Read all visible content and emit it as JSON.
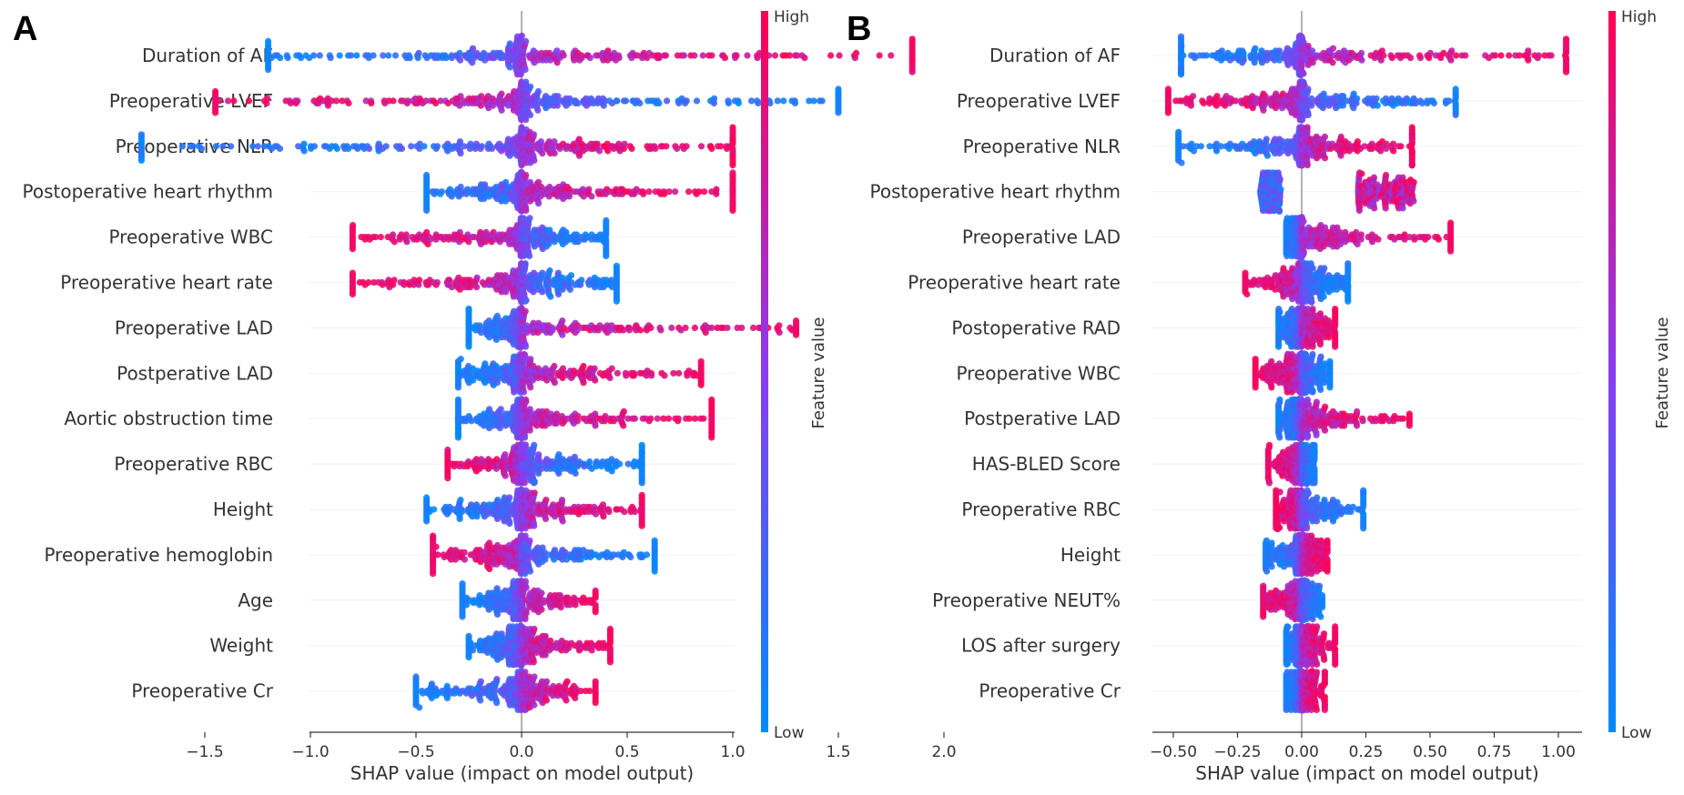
{
  "chart_data": [
    {
      "type": "scatter",
      "subtype": "shap-beeswarm",
      "panel_label": "A",
      "xlabel": "SHAP value (impact on model output)",
      "xlim": [
        -1.97,
        2.0
      ],
      "xticks": [
        -1.5,
        -1.0,
        -0.5,
        0.0,
        0.5,
        1.0,
        1.5,
        2.0
      ],
      "xtick_labels": [
        "−1.5",
        "−1.0",
        "−0.5",
        "0.0",
        "0.5",
        "1.0",
        "1.5",
        "2.0"
      ],
      "colorbar": {
        "label": "Feature value",
        "high": "High",
        "low": "Low"
      },
      "features": [
        {
          "name": "Duration of AF",
          "min": -1.2,
          "max": 1.85,
          "high_effect": "positive"
        },
        {
          "name": "Preoperative LVEF",
          "min": -1.45,
          "max": 1.5,
          "high_effect": "negative"
        },
        {
          "name": "Preoperative NLR",
          "min": -1.8,
          "max": 1.0,
          "high_effect": "positive"
        },
        {
          "name": "Postoperative heart rhythm",
          "min": -0.45,
          "max": 1.0,
          "high_effect": "positive"
        },
        {
          "name": "Preoperative WBC",
          "min": -0.8,
          "max": 0.4,
          "high_effect": "negative"
        },
        {
          "name": "Preoperative heart rate",
          "min": -0.8,
          "max": 0.45,
          "high_effect": "negative"
        },
        {
          "name": "Preoperative LAD",
          "min": -0.25,
          "max": 1.3,
          "high_effect": "positive"
        },
        {
          "name": "Postperative LAD",
          "min": -0.3,
          "max": 0.85,
          "high_effect": "positive"
        },
        {
          "name": "Aortic obstruction time",
          "min": -0.3,
          "max": 0.9,
          "high_effect": "positive"
        },
        {
          "name": "Preoperative  RBC",
          "min": -0.35,
          "max": 0.57,
          "high_effect": "negative"
        },
        {
          "name": "Height",
          "min": -0.45,
          "max": 0.57,
          "high_effect": "positive"
        },
        {
          "name": "Preoperative hemoglobin",
          "min": -0.42,
          "max": 0.63,
          "high_effect": "negative"
        },
        {
          "name": "Age",
          "min": -0.28,
          "max": 0.35,
          "high_effect": "positive"
        },
        {
          "name": "Weight",
          "min": -0.25,
          "max": 0.42,
          "high_effect": "positive"
        },
        {
          "name": "Preoperative Cr",
          "min": -0.5,
          "max": 0.35,
          "high_effect": "positive"
        }
      ]
    },
    {
      "type": "scatter",
      "subtype": "shap-beeswarm",
      "panel_label": "B",
      "xlabel": "SHAP value (impact on model output)",
      "xlim": [
        -0.58,
        1.09
      ],
      "xticks": [
        -0.5,
        -0.25,
        0.0,
        0.25,
        0.5,
        0.75,
        1.0
      ],
      "xtick_labels": [
        "−0.50",
        "−0.25",
        "0.00",
        "0.25",
        "0.50",
        "0.75",
        "1.00"
      ],
      "colorbar": {
        "label": "Feature value",
        "high": "High",
        "low": "Low"
      },
      "features": [
        {
          "name": "Duration of AF",
          "min": -0.47,
          "max": 1.03,
          "high_effect": "positive"
        },
        {
          "name": "Preoperative LVEF",
          "min": -0.52,
          "max": 0.6,
          "high_effect": "negative"
        },
        {
          "name": "Preoperative NLR",
          "min": -0.48,
          "max": 0.43,
          "high_effect": "positive"
        },
        {
          "name": "Postoperative heart rhythm",
          "min": -0.22,
          "max": 0.47,
          "high_effect": "positive",
          "bimodal": true
        },
        {
          "name": "Preoperative LAD",
          "min": -0.06,
          "max": 0.58,
          "high_effect": "positive"
        },
        {
          "name": "Preoperative heart rate",
          "min": -0.22,
          "max": 0.18,
          "high_effect": "negative"
        },
        {
          "name": "Postoperative RAD",
          "min": -0.09,
          "max": 0.13,
          "high_effect": "positive"
        },
        {
          "name": "Preoperative WBC",
          "min": -0.18,
          "max": 0.11,
          "high_effect": "negative"
        },
        {
          "name": "Postperative LAD",
          "min": -0.09,
          "max": 0.42,
          "high_effect": "positive"
        },
        {
          "name": "HAS-BLED  Score",
          "min": -0.13,
          "max": 0.05,
          "high_effect": "negative"
        },
        {
          "name": "Preoperative  RBC",
          "min": -0.1,
          "max": 0.24,
          "high_effect": "negative"
        },
        {
          "name": "Height",
          "min": -0.14,
          "max": 0.1,
          "high_effect": "positive"
        },
        {
          "name": "Preoperative NEUT%",
          "min": -0.15,
          "max": 0.08,
          "high_effect": "negative"
        },
        {
          "name": "LOS after surgery",
          "min": -0.06,
          "max": 0.13,
          "high_effect": "positive"
        },
        {
          "name": "Preoperative Cr",
          "min": -0.06,
          "max": 0.09,
          "high_effect": "positive"
        }
      ]
    }
  ],
  "colors": {
    "low": "#008bfb",
    "mid": "#8a3cf0",
    "high": "#ff0052",
    "zero_line": "#999999",
    "axis": "#333333"
  }
}
